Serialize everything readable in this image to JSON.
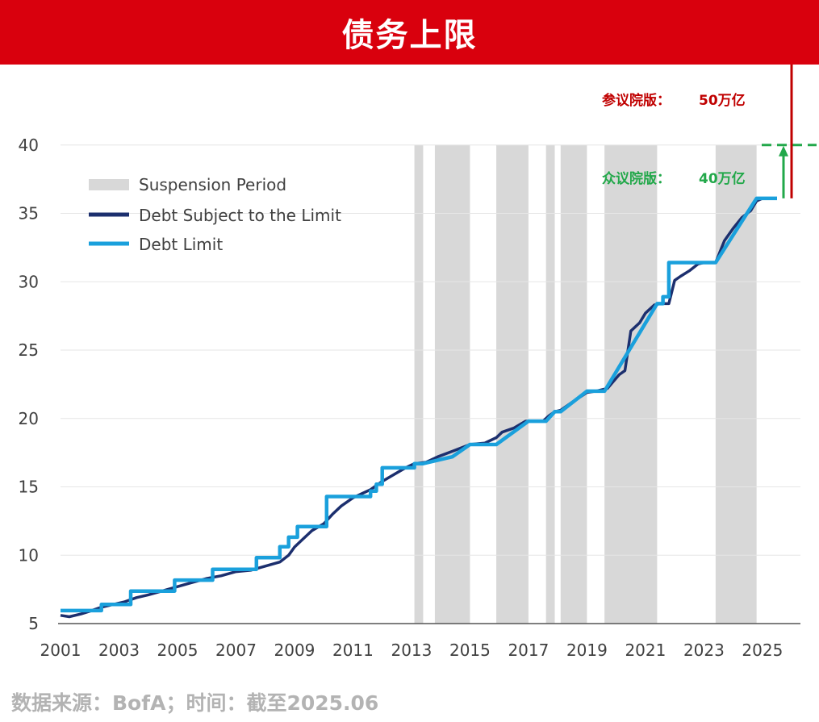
{
  "page": {
    "title": "债务上限",
    "source": "数据来源：BofA；时间：截至2025.06"
  },
  "colors": {
    "banner": "#d9000d",
    "debt_subject": "#1c2f6e",
    "debt_limit": "#1aa0dc",
    "suspension": "#d8d8d8",
    "senate": "#c00000",
    "house": "#22a84a"
  },
  "annotations": {
    "senate_label": "参议院版：",
    "senate_value": "50万亿",
    "house_label": "众议院版：",
    "house_value": "40万亿"
  },
  "chart_data": {
    "type": "line",
    "title": "",
    "xlabel": "",
    "ylabel": "",
    "xlim": [
      2001,
      2026.3
    ],
    "ylim": [
      5,
      45
    ],
    "x_ticks": [
      2001,
      2003,
      2005,
      2007,
      2009,
      2011,
      2013,
      2015,
      2017,
      2019,
      2021,
      2023,
      2025
    ],
    "y_ticks": [
      5,
      10,
      15,
      20,
      25,
      30,
      35,
      40
    ],
    "grid": "horizontal",
    "legend": [
      {
        "label": "Suspension Period",
        "kind": "box"
      },
      {
        "label": "Debt Subject to the Limit",
        "kind": "line"
      },
      {
        "label": "Debt Limit",
        "kind": "line"
      }
    ],
    "legend_position": "top-left",
    "suspension_periods": [
      [
        2013.1,
        2013.4
      ],
      [
        2013.8,
        2015.0
      ],
      [
        2015.9,
        2017.0
      ],
      [
        2017.6,
        2017.9
      ],
      [
        2018.1,
        2019.0
      ],
      [
        2019.6,
        2021.4
      ],
      [
        2023.4,
        2024.8
      ]
    ],
    "series": [
      {
        "name": "Debt Subject to the Limit",
        "x": [
          2001.0,
          2001.3,
          2001.7,
          2002.0,
          2002.4,
          2002.8,
          2003.2,
          2003.6,
          2004.0,
          2004.5,
          2005.0,
          2005.5,
          2006.0,
          2006.5,
          2007.0,
          2007.5,
          2008.0,
          2008.5,
          2008.8,
          2009.0,
          2009.3,
          2009.6,
          2010.0,
          2010.3,
          2010.6,
          2011.0,
          2011.3,
          2011.6,
          2012.0,
          2012.4,
          2012.8,
          2013.1,
          2013.5,
          2013.9,
          2014.4,
          2015.0,
          2015.5,
          2015.9,
          2016.1,
          2016.5,
          2016.9,
          2017.2,
          2017.5,
          2017.7,
          2017.9,
          2018.1,
          2018.5,
          2019.0,
          2019.3,
          2019.7,
          2019.9,
          2020.1,
          2020.3,
          2020.5,
          2020.8,
          2021.0,
          2021.3,
          2021.5,
          2021.8,
          2022.0,
          2022.2,
          2022.5,
          2022.8,
          2023.0,
          2023.4,
          2023.7,
          2024.0,
          2024.3,
          2024.6,
          2024.8,
          2025.0,
          2025.5
        ],
        "values": [
          5.6,
          5.5,
          5.7,
          5.9,
          6.2,
          6.4,
          6.6,
          6.9,
          7.1,
          7.4,
          7.7,
          8.0,
          8.3,
          8.5,
          8.8,
          8.9,
          9.2,
          9.5,
          10.0,
          10.6,
          11.2,
          11.8,
          12.3,
          13.0,
          13.6,
          14.2,
          14.5,
          14.8,
          15.4,
          15.9,
          16.4,
          16.7,
          16.8,
          17.2,
          17.6,
          18.1,
          18.2,
          18.6,
          19.0,
          19.3,
          19.8,
          19.8,
          19.8,
          20.2,
          20.5,
          20.6,
          21.2,
          21.9,
          22.0,
          22.2,
          22.7,
          23.2,
          23.5,
          26.4,
          27.0,
          27.7,
          28.3,
          28.4,
          28.4,
          30.1,
          30.4,
          30.8,
          31.3,
          31.4,
          31.4,
          33.0,
          33.9,
          34.7,
          35.2,
          35.9,
          36.1,
          36.1
        ]
      },
      {
        "name": "Debt Limit",
        "x": [
          2001.0,
          2002.4,
          2002.4,
          2003.4,
          2003.4,
          2004.9,
          2004.9,
          2006.2,
          2006.2,
          2007.7,
          2007.7,
          2008.5,
          2008.5,
          2008.8,
          2008.8,
          2009.1,
          2009.1,
          2010.1,
          2010.1,
          2011.6,
          2011.6,
          2011.8,
          2011.8,
          2012.0,
          2012.0,
          2013.1,
          2013.1,
          2013.4,
          2014.4,
          2015.0,
          2015.9,
          2017.0,
          2017.6,
          2017.9,
          2018.1,
          2019.0,
          2019.6,
          2021.4,
          2021.6,
          2021.6,
          2021.8,
          2021.8,
          2023.4,
          2024.8,
          2025.5
        ],
        "values": [
          5.95,
          5.95,
          6.4,
          6.4,
          7.38,
          7.38,
          8.18,
          8.18,
          8.97,
          8.97,
          9.82,
          9.82,
          10.62,
          10.62,
          11.32,
          11.32,
          12.1,
          12.1,
          14.29,
          14.29,
          14.69,
          14.69,
          15.19,
          15.19,
          16.39,
          16.39,
          16.7,
          16.7,
          17.2,
          18.1,
          18.1,
          19.8,
          19.8,
          20.5,
          20.5,
          22.0,
          22.0,
          28.4,
          28.4,
          28.9,
          28.9,
          31.4,
          31.4,
          36.1,
          36.1
        ]
      }
    ],
    "targets": [
      {
        "name": "参议院版",
        "value": 50,
        "label": "50万亿"
      },
      {
        "name": "众议院版",
        "value": 40,
        "label": "40万亿"
      }
    ]
  }
}
